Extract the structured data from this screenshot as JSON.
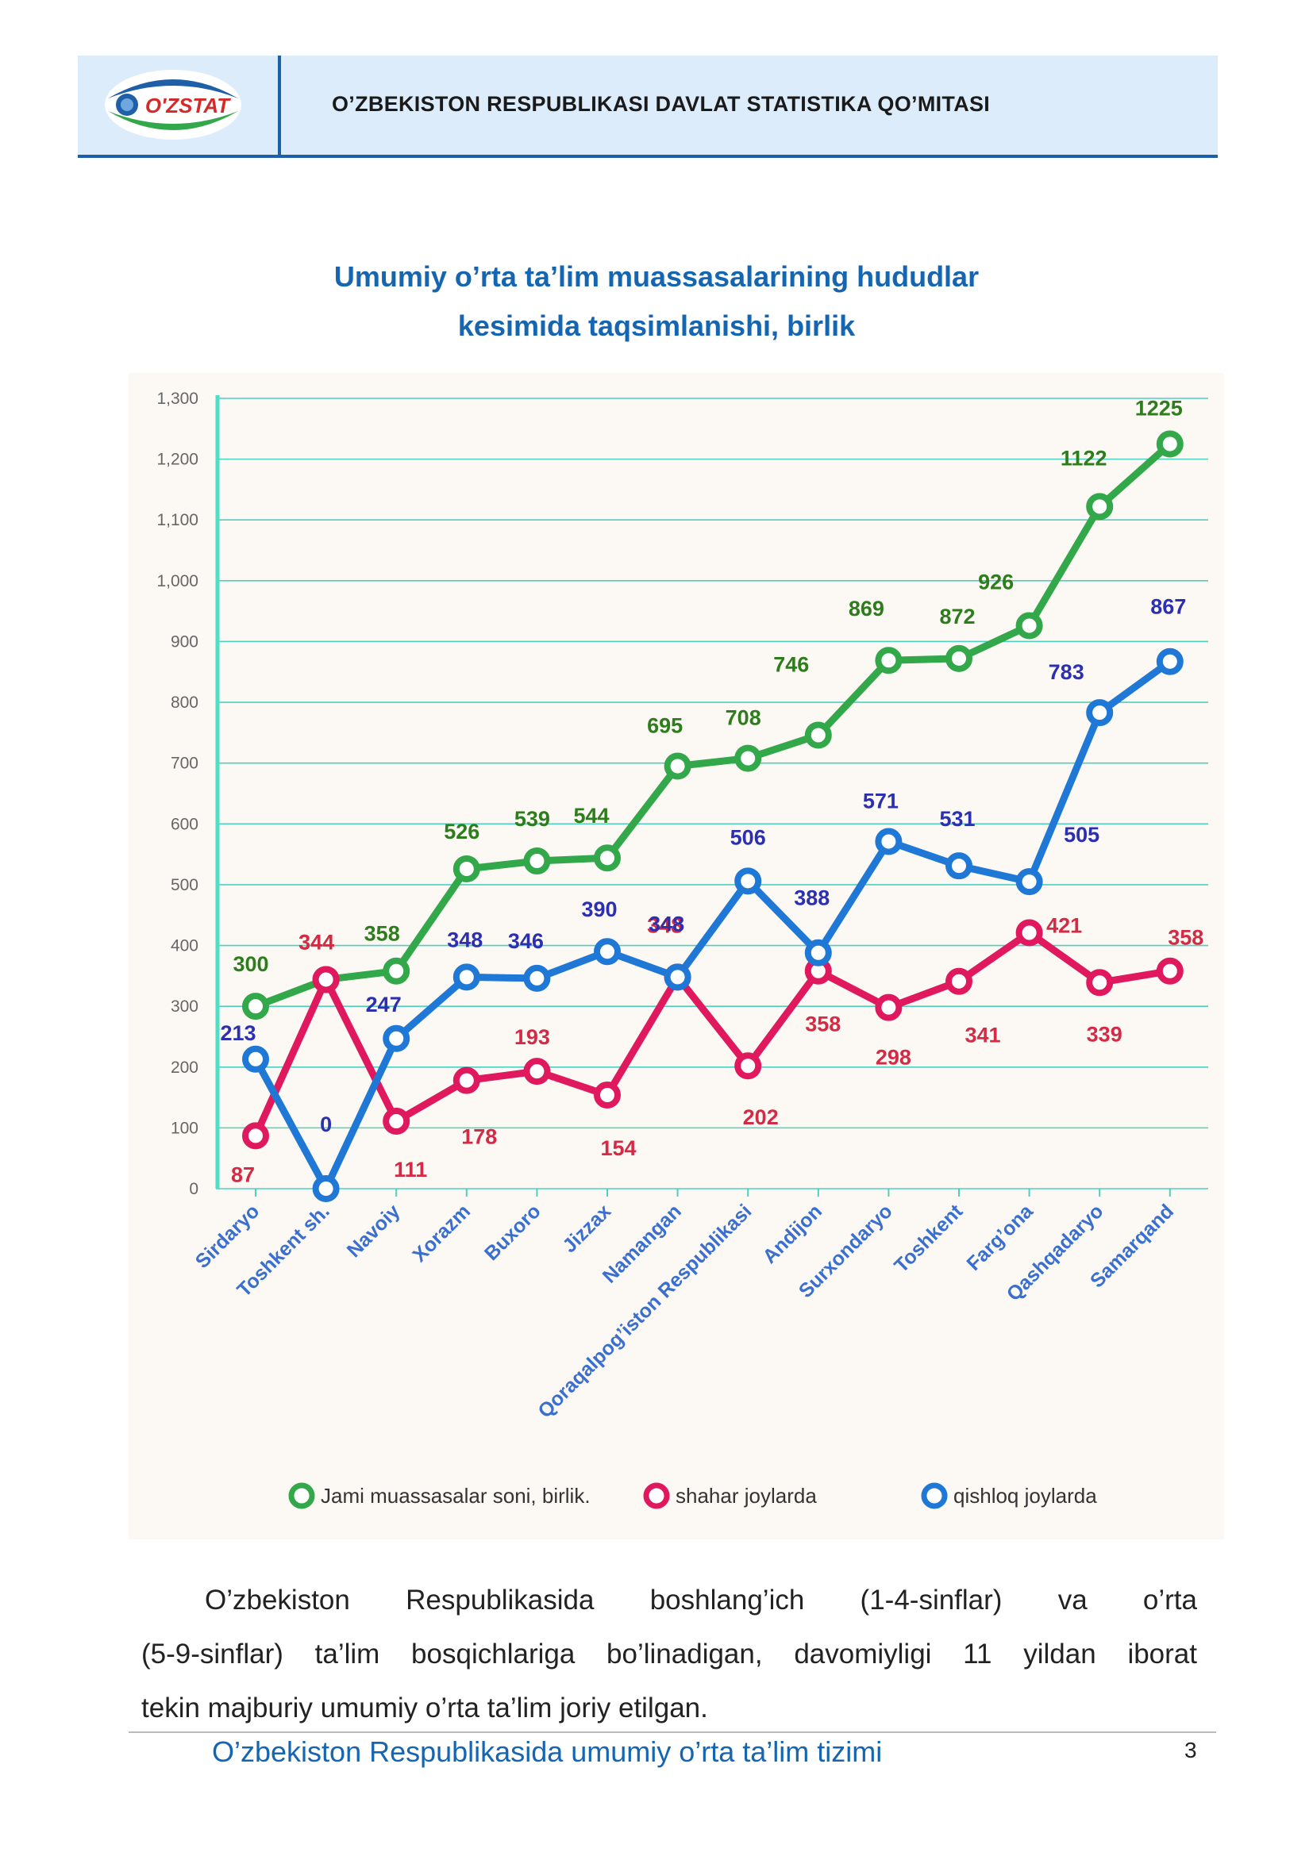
{
  "header": {
    "logo_text": "O'ZSTAT",
    "org_name": "O’ZBEKISTON RESPUBLIKASI DAVLAT STATISTIKA QO’MITASI"
  },
  "title": {
    "line1": "Umumiy o’rta ta’lim muassasalarining hududlar",
    "line2": "kesimida taqsimlanishi, birlik"
  },
  "chart_data": {
    "type": "line",
    "title": "Umumiy o’rta ta’lim muassasalarining hududlar kesimida taqsimlanishi, birlik",
    "xlabel": "",
    "ylabel": "",
    "ylim": [
      0,
      1300
    ],
    "yticks": [
      "0",
      "100",
      "200",
      "300",
      "400",
      "500",
      "600",
      "700",
      "800",
      "900",
      "1,000",
      "1,100",
      "1,200",
      "1,300"
    ],
    "grid": true,
    "legend_position": "bottom",
    "categories": [
      "Sirdaryo",
      "Toshkent sh.",
      "Navoiy",
      "Xorazm",
      "Buxoro",
      "Jizzax",
      "Namangan",
      "Qoraqalpog’iston Respublikasi",
      "Andijon",
      "Surxondaryo",
      "Toshkent",
      "Farg’ona",
      "Qashqadaryo",
      "Samarqand"
    ],
    "series": [
      {
        "name": "Jami muassasalar soni, birlik.",
        "color": "#33a84a",
        "label_color": "#2e7d1c",
        "values": [
          300,
          344,
          358,
          526,
          539,
          544,
          695,
          708,
          746,
          869,
          872,
          926,
          1122,
          1225
        ]
      },
      {
        "name": "shahar joylarda",
        "color": "#e0195f",
        "label_color": "#d42a45",
        "values": [
          87,
          344,
          111,
          178,
          193,
          154,
          348,
          202,
          358,
          298,
          341,
          421,
          339,
          358
        ]
      },
      {
        "name": "qishloq joylarda",
        "color": "#1f78d6",
        "label_color": "#2b2fb0",
        "values": [
          213,
          0,
          247,
          348,
          346,
          390,
          348,
          506,
          388,
          571,
          531,
          505,
          783,
          867
        ]
      }
    ]
  },
  "body_text": {
    "line1_words": [
      "O’zbekiston",
      "Respublikasida",
      "boshlang’ich",
      "(1-4-sinflar)",
      "va",
      "o’rta"
    ],
    "line2": "(5-9-sinflar) ta’lim bosqichlariga bo’linadigan, davomiyligi 11 yildan iborat",
    "line3": "tekin majburiy umumiy o’rta ta’lim joriy etilgan."
  },
  "footer": {
    "title": "O’zbekiston Respublikasida umumiy o’rta ta’lim tizimi",
    "page": "3"
  }
}
